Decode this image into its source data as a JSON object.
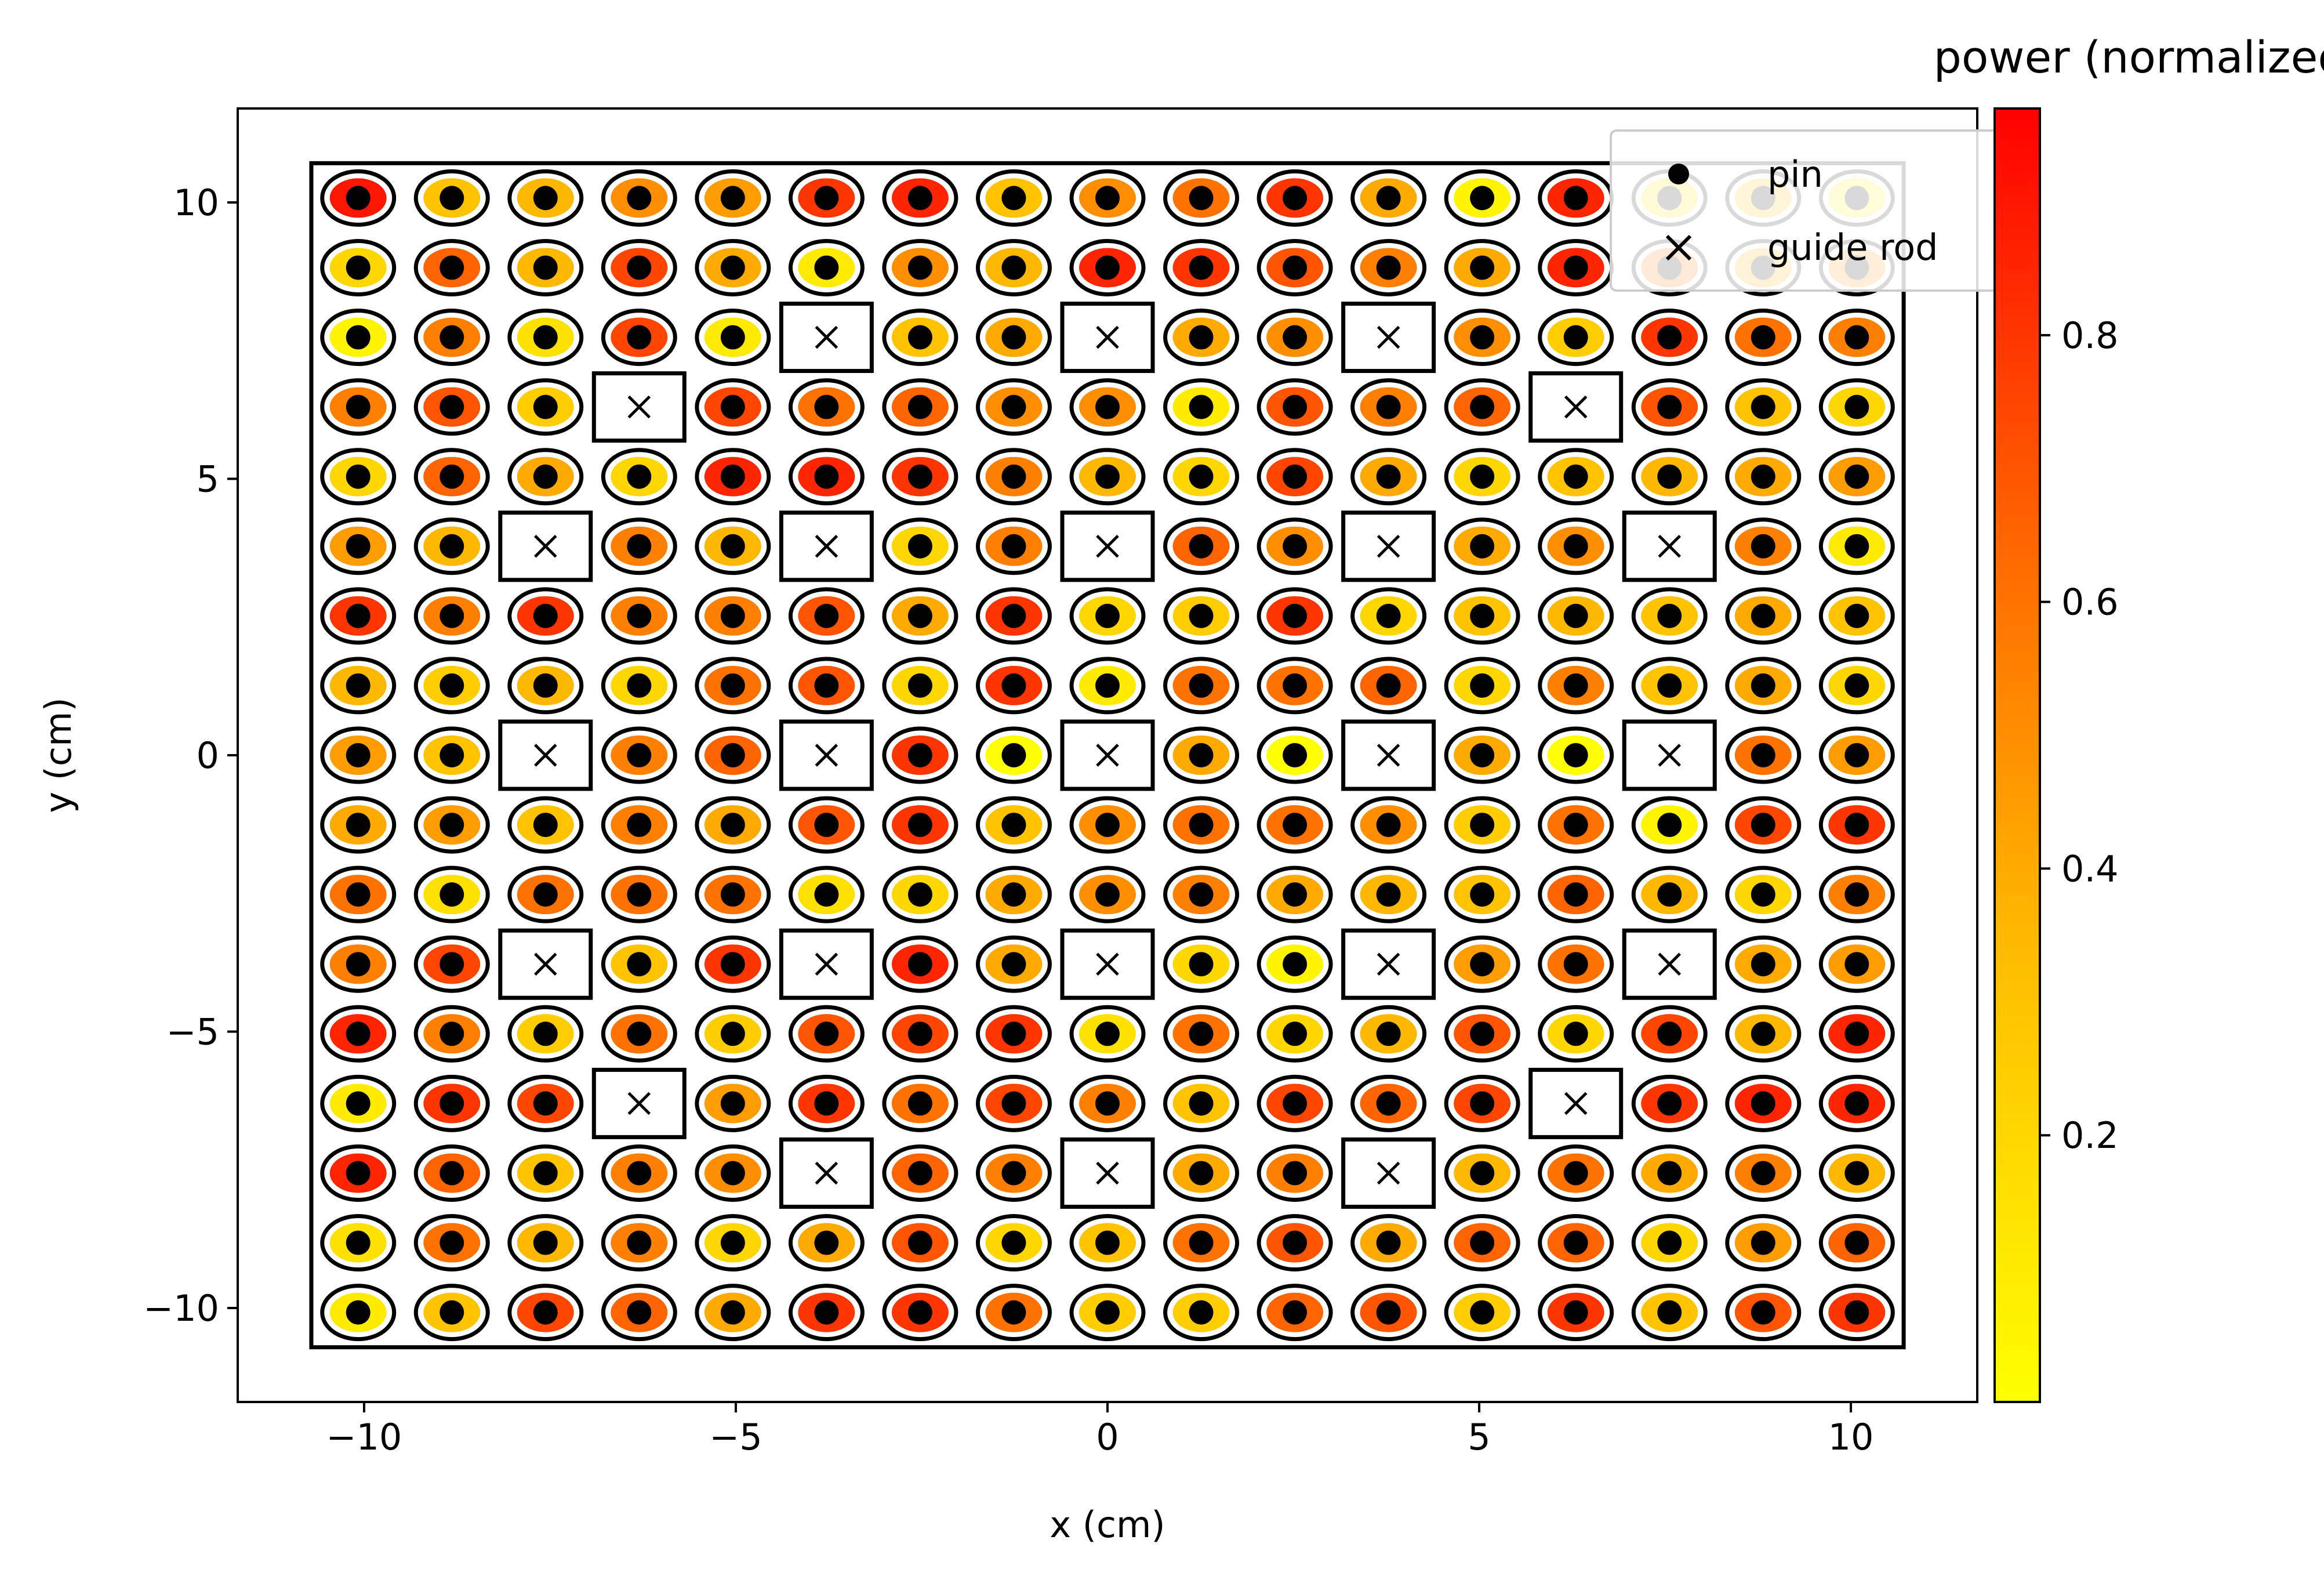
{
  "chart_data": {
    "type": "scatter",
    "title": "",
    "xlabel": "x (cm)",
    "ylabel": "y (cm)",
    "xlim": [
      -11.7,
      11.7
    ],
    "ylim": [
      -11.7,
      11.7
    ],
    "xticks": [
      -10,
      -5,
      0,
      5,
      10
    ],
    "yticks": [
      -10,
      -5,
      0,
      5,
      10
    ],
    "xtick_labels": [
      "−10",
      "−5",
      "0",
      "5",
      "10"
    ],
    "ytick_labels": [
      "−10",
      "−5",
      "0",
      "5",
      "10"
    ],
    "grid": false,
    "assembly_boundary_half_width": 10.71,
    "pitch": 1.26,
    "n_lattice": 17,
    "legend": {
      "placement": "top-right",
      "entries": [
        {
          "label": "pin",
          "marker": "filled-circle"
        },
        {
          "label": "guide rod",
          "marker": "x"
        }
      ]
    },
    "colorbar": {
      "label": "power (normalized)",
      "range": [
        0.0,
        0.97
      ],
      "ticks": [
        0.2,
        0.4,
        0.6,
        0.8
      ],
      "tick_labels": [
        "0.2",
        "0.4",
        "0.6",
        "0.8"
      ],
      "colormap": [
        "#ffff00",
        "#ffbb00",
        "#ff6a00",
        "#ff0000"
      ]
    },
    "guide_rod_indices": [
      [
        5,
        2
      ],
      [
        8,
        2
      ],
      [
        11,
        2
      ],
      [
        3,
        3
      ],
      [
        13,
        3
      ],
      [
        2,
        5
      ],
      [
        5,
        5
      ],
      [
        8,
        5
      ],
      [
        11,
        5
      ],
      [
        14,
        5
      ],
      [
        2,
        8
      ],
      [
        5,
        8
      ],
      [
        8,
        8
      ],
      [
        11,
        8
      ],
      [
        14,
        8
      ],
      [
        2,
        11
      ],
      [
        5,
        11
      ],
      [
        8,
        11
      ],
      [
        11,
        11
      ],
      [
        14,
        11
      ],
      [
        3,
        13
      ],
      [
        13,
        13
      ],
      [
        5,
        14
      ],
      [
        8,
        14
      ],
      [
        11,
        14
      ]
    ],
    "power_rows_top_to_bottom": [
      [
        0.9,
        0.3,
        0.35,
        0.5,
        0.45,
        0.8,
        0.85,
        0.3,
        0.5,
        0.6,
        0.8,
        0.4,
        0.05,
        0.85,
        0.15,
        0.3,
        0.1
      ],
      [
        0.2,
        0.65,
        0.35,
        0.75,
        0.4,
        0.1,
        0.5,
        0.35,
        0.85,
        0.8,
        0.7,
        0.55,
        0.4,
        0.85,
        0.6,
        0.4,
        0.5
      ],
      [
        0.05,
        0.55,
        0.15,
        0.75,
        0.1,
        0.0,
        0.3,
        0.4,
        0.0,
        0.4,
        0.5,
        0.0,
        0.5,
        0.25,
        0.8,
        0.6,
        0.55
      ],
      [
        0.55,
        0.7,
        0.25,
        0.0,
        0.75,
        0.6,
        0.65,
        0.5,
        0.5,
        0.1,
        0.7,
        0.55,
        0.65,
        0.0,
        0.7,
        0.3,
        0.2
      ],
      [
        0.2,
        0.65,
        0.4,
        0.2,
        0.85,
        0.85,
        0.8,
        0.55,
        0.35,
        0.2,
        0.75,
        0.4,
        0.2,
        0.3,
        0.35,
        0.4,
        0.45
      ],
      [
        0.45,
        0.35,
        0.0,
        0.55,
        0.35,
        0.0,
        0.2,
        0.55,
        0.0,
        0.65,
        0.5,
        0.0,
        0.4,
        0.5,
        0.0,
        0.55,
        0.1
      ],
      [
        0.8,
        0.55,
        0.8,
        0.55,
        0.55,
        0.7,
        0.4,
        0.8,
        0.2,
        0.25,
        0.8,
        0.2,
        0.3,
        0.35,
        0.3,
        0.4,
        0.3
      ],
      [
        0.35,
        0.25,
        0.35,
        0.2,
        0.6,
        0.7,
        0.2,
        0.8,
        0.1,
        0.6,
        0.6,
        0.65,
        0.2,
        0.55,
        0.3,
        0.4,
        0.2
      ],
      [
        0.45,
        0.3,
        0.0,
        0.55,
        0.65,
        0.0,
        0.8,
        0.0,
        0.75,
        0.4,
        0.0,
        0.8,
        0.4,
        0.0,
        0.8,
        0.6,
        0.45
      ],
      [
        0.4,
        0.45,
        0.3,
        0.55,
        0.4,
        0.7,
        0.8,
        0.3,
        0.5,
        0.6,
        0.6,
        0.5,
        0.25,
        0.6,
        0.05,
        0.75,
        0.8
      ],
      [
        0.6,
        0.15,
        0.6,
        0.6,
        0.6,
        0.15,
        0.2,
        0.4,
        0.5,
        0.55,
        0.4,
        0.35,
        0.3,
        0.65,
        0.35,
        0.2,
        0.55
      ],
      [
        0.55,
        0.75,
        0.0,
        0.3,
        0.8,
        0.0,
        0.85,
        0.4,
        0.0,
        0.2,
        0.05,
        0.0,
        0.45,
        0.6,
        0.0,
        0.4,
        0.45
      ],
      [
        0.85,
        0.55,
        0.25,
        0.6,
        0.25,
        0.7,
        0.75,
        0.8,
        0.15,
        0.6,
        0.2,
        0.35,
        0.7,
        0.2,
        0.75,
        0.35,
        0.85
      ],
      [
        0.1,
        0.8,
        0.75,
        0.0,
        0.45,
        0.8,
        0.6,
        0.75,
        0.55,
        0.3,
        0.75,
        0.65,
        0.75,
        0.0,
        0.8,
        0.85,
        0.85
      ],
      [
        0.85,
        0.65,
        0.3,
        0.55,
        0.5,
        0.0,
        0.65,
        0.55,
        0.0,
        0.4,
        0.55,
        0.0,
        0.35,
        0.6,
        0.4,
        0.55,
        0.35
      ],
      [
        0.15,
        0.6,
        0.35,
        0.55,
        0.2,
        0.4,
        0.7,
        0.2,
        0.3,
        0.6,
        0.7,
        0.4,
        0.65,
        0.65,
        0.2,
        0.45,
        0.65
      ],
      [
        0.1,
        0.3,
        0.75,
        0.65,
        0.4,
        0.8,
        0.8,
        0.6,
        0.25,
        0.25,
        0.65,
        0.7,
        0.25,
        0.8,
        0.3,
        0.7,
        0.8
      ]
    ]
  }
}
